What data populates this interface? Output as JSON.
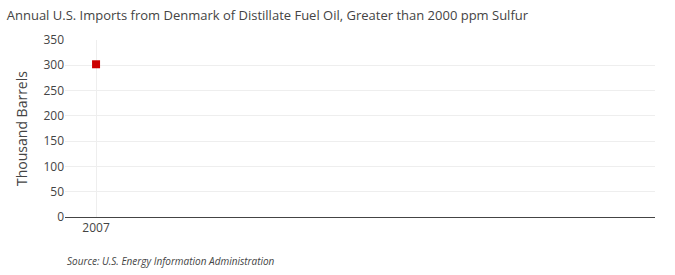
{
  "chart_data": {
    "type": "scatter",
    "title": "Annual U.S. Imports from Denmark of Distillate Fuel Oil, Greater than 2000 ppm Sulfur",
    "ylabel": "Thousand Barrels",
    "source": "Source: U.S. Energy Information Administration",
    "x": [
      2007
    ],
    "values": [
      302
    ],
    "color": "#cc0000",
    "marker": "square",
    "xlim": [
      2006.5,
      2016
    ],
    "xticks": [
      2007
    ],
    "ylim": [
      0,
      350
    ],
    "yticks": [
      0,
      50,
      100,
      150,
      200,
      250,
      300,
      350
    ],
    "grid": true
  }
}
